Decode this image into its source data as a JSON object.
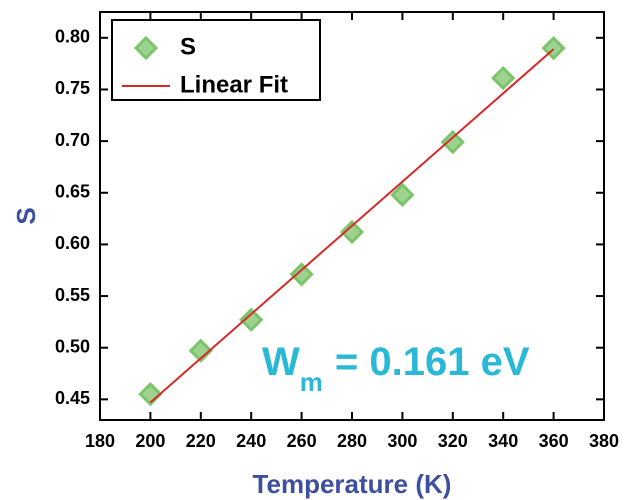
{
  "chart_data": {
    "type": "scatter",
    "xlabel": "Temperature (K)",
    "ylabel": "S",
    "x": [
      200,
      220,
      240,
      260,
      280,
      300,
      320,
      340,
      360
    ],
    "series": [
      {
        "name": "S",
        "color": "#7cc46a",
        "values": [
          0.455,
          0.497,
          0.527,
          0.571,
          0.612,
          0.648,
          0.699,
          0.761,
          0.79
        ]
      },
      {
        "name": "Linear Fit",
        "color": "#d62a2a",
        "x": [
          200,
          360
        ],
        "values": [
          0.447,
          0.789
        ]
      }
    ],
    "annotation": {
      "main": "W",
      "sub": "m",
      "rest": "= 0.161 eV"
    },
    "xlim": [
      180,
      380
    ],
    "ylim": [
      0.43,
      0.825
    ],
    "xticks": [
      180,
      200,
      220,
      240,
      260,
      280,
      300,
      320,
      340,
      360,
      380
    ],
    "yticks": [
      0.45,
      {
        "value": 0.5,
        "label": "0.50"
      },
      0.55,
      {
        "value": 0.6,
        "label": "0.60"
      },
      0.65,
      {
        "value": 0.7,
        "label": "0.70"
      },
      0.75,
      {
        "value": 0.8,
        "label": "0.80"
      }
    ],
    "legend": "top-left"
  }
}
